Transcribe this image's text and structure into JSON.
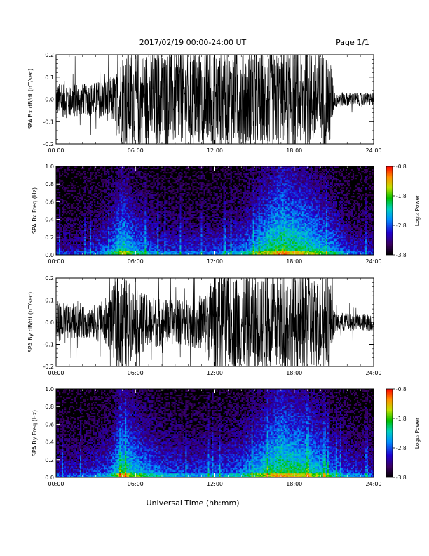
{
  "header": {
    "title": "2017/02/19  00:00-24:00 UT",
    "page": "Page 1/1"
  },
  "footer": {
    "xlabel": "Universal Time (hh:mm)"
  },
  "chart_data": [
    {
      "type": "line",
      "ylabel": "SPA Bx dB/dt (nT/sec)",
      "xlim": [
        "00:00",
        "24:00"
      ],
      "x_ticks": [
        "00:00",
        "06:00",
        "12:00",
        "18:00",
        "24:00"
      ],
      "ylim": [
        -0.2,
        0.2
      ],
      "y_ticks": [
        "-0.2",
        "-0.1",
        "0.0",
        "0.1",
        "0.2"
      ],
      "series": [
        {
          "x_hours": [
            0,
            1,
            2,
            3,
            4,
            4.6,
            5,
            6,
            7,
            8,
            9,
            10,
            11,
            12,
            13,
            14,
            15,
            16,
            17,
            18,
            19,
            20,
            20.7,
            21,
            22,
            23,
            24
          ],
          "amplitude": [
            0.07,
            0.09,
            0.07,
            0.08,
            0.1,
            0.12,
            0.22,
            0.22,
            0.22,
            0.22,
            0.22,
            0.22,
            0.22,
            0.22,
            0.22,
            0.22,
            0.22,
            0.22,
            0.22,
            0.22,
            0.22,
            0.22,
            0.22,
            0.04,
            0.03,
            0.03,
            0.03
          ]
        }
      ]
    },
    {
      "type": "heatmap",
      "ylabel": "SPA Bx Freq (Hz)",
      "xlim": [
        "00:00",
        "24:00"
      ],
      "x_ticks": [
        "00:00",
        "06:00",
        "12:00",
        "18:00",
        "24:00"
      ],
      "ylim": [
        0.0,
        1.0
      ],
      "y_ticks": [
        "0.0",
        "0.2",
        "0.4",
        "0.6",
        "0.8",
        "1.0"
      ],
      "colorbar": {
        "label": "Log₁₀ Power",
        "range": [
          -3.8,
          -0.8
        ],
        "ticks": [
          "-0.8",
          "-1.8",
          "-2.8",
          "-3.8"
        ]
      },
      "activity_hours": [
        0,
        2,
        4,
        5,
        6,
        8,
        10,
        12,
        14,
        16,
        17,
        18,
        19,
        20,
        21,
        22,
        24
      ],
      "activity_level": [
        0.3,
        0.3,
        0.5,
        0.8,
        0.6,
        0.4,
        0.4,
        0.4,
        0.5,
        0.8,
        0.9,
        0.85,
        0.8,
        0.7,
        0.6,
        0.4,
        0.3
      ]
    },
    {
      "type": "line",
      "ylabel": "SPA By dB/dt (nT/sec)",
      "xlim": [
        "00:00",
        "24:00"
      ],
      "x_ticks": [
        "00:00",
        "06:00",
        "12:00",
        "18:00",
        "24:00"
      ],
      "ylim": [
        -0.2,
        0.2
      ],
      "y_ticks": [
        "-0.2",
        "-0.1",
        "0.0",
        "0.1",
        "0.2"
      ],
      "series": [
        {
          "x_hours": [
            0,
            1,
            2,
            3,
            4,
            4.6,
            5,
            6,
            7,
            8,
            9,
            10,
            11,
            12,
            13,
            14,
            15,
            16,
            17,
            18,
            19,
            20,
            20.7,
            21,
            22,
            23,
            24
          ],
          "amplitude": [
            0.1,
            0.08,
            0.07,
            0.08,
            0.12,
            0.2,
            0.22,
            0.15,
            0.12,
            0.11,
            0.1,
            0.11,
            0.13,
            0.22,
            0.22,
            0.22,
            0.22,
            0.22,
            0.22,
            0.22,
            0.22,
            0.2,
            0.22,
            0.05,
            0.04,
            0.04,
            0.04
          ]
        }
      ]
    },
    {
      "type": "heatmap",
      "ylabel": "SPA By Freq (Hz)",
      "xlim": [
        "00:00",
        "24:00"
      ],
      "x_ticks": [
        "00:00",
        "06:00",
        "12:00",
        "18:00",
        "24:00"
      ],
      "ylim": [
        0.0,
        1.0
      ],
      "y_ticks": [
        "0.0",
        "0.2",
        "0.4",
        "0.6",
        "0.8",
        "1.0"
      ],
      "colorbar": {
        "label": "Log₁₀ Power",
        "range": [
          -3.8,
          -0.8
        ],
        "ticks": [
          "-0.8",
          "-1.8",
          "-2.8",
          "-3.8"
        ]
      },
      "activity_hours": [
        0,
        2,
        4,
        5,
        6,
        8,
        10,
        12,
        14,
        16,
        17,
        18,
        19,
        20,
        21,
        22,
        24
      ],
      "activity_level": [
        0.35,
        0.35,
        0.5,
        0.85,
        0.7,
        0.5,
        0.45,
        0.45,
        0.55,
        0.8,
        0.9,
        0.85,
        0.8,
        0.7,
        0.55,
        0.45,
        0.35
      ]
    }
  ]
}
